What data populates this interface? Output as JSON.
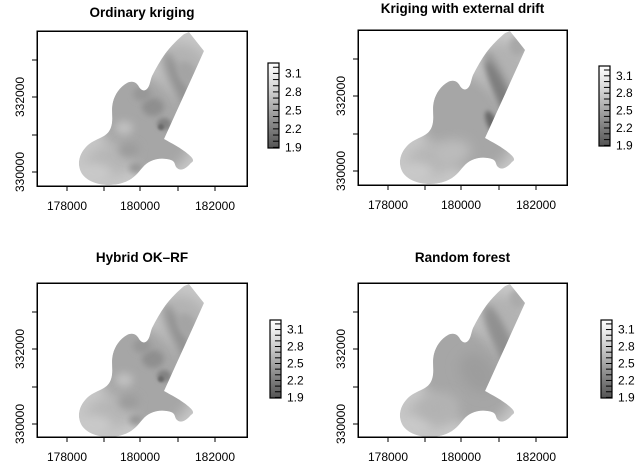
{
  "chart_data": {
    "type": "heatmap",
    "layout": "2x2 panel grid of grayscale spatial prediction maps (same irregular floodplain region in every panel)",
    "panels": [
      {
        "title": "Ordinary kriging"
      },
      {
        "title": "Kriging with external drift"
      },
      {
        "title": "Hybrid OK–RF"
      },
      {
        "title": "Random forest"
      }
    ],
    "x_axis": {
      "tick_values": [
        178000,
        179000,
        180000,
        181000,
        182000
      ],
      "labeled": [
        "178000",
        "180000",
        "182000"
      ]
    },
    "y_axis": {
      "tick_values": [
        333000,
        332000,
        331000,
        330000
      ],
      "labeled": [
        "332000",
        "330000"
      ]
    },
    "colorbar": {
      "orientation": "vertical",
      "tick_labels": [
        "3.1",
        "2.8",
        "2.5",
        "2.2",
        "1.9"
      ],
      "labeled_values": [
        3.1,
        2.8,
        2.5,
        2.2,
        1.9
      ],
      "minor_tick_count": 14,
      "value_top": 3.25,
      "value_bottom": 1.85,
      "color_high": "#ffffff",
      "color_low": "#545454",
      "dark_means_low": true
    }
  },
  "colors": {
    "background": "#ffffff",
    "foreground": "#000000",
    "map_base": "#c7c7c7"
  }
}
